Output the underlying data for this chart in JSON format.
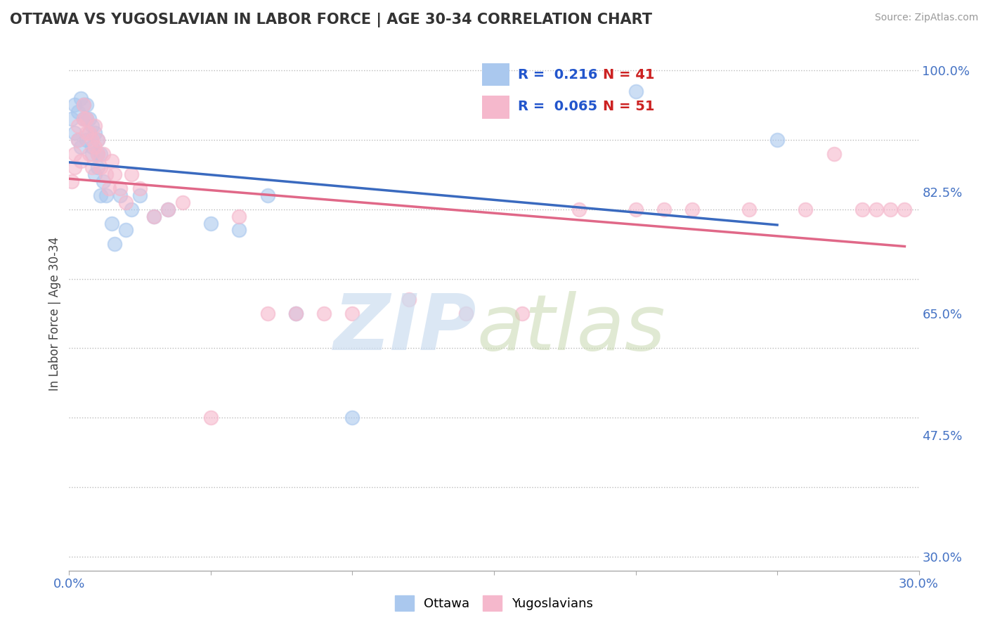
{
  "title": "OTTAWA VS YUGOSLAVIAN IN LABOR FORCE | AGE 30-34 CORRELATION CHART",
  "source": "Source: ZipAtlas.com",
  "ylabel": "In Labor Force | Age 30-34",
  "xlim": [
    0.0,
    0.3
  ],
  "ylim": [
    0.28,
    1.02
  ],
  "xticks": [
    0.0,
    0.05,
    0.1,
    0.15,
    0.2,
    0.25,
    0.3
  ],
  "xtick_labels": [
    "0.0%",
    "",
    "",
    "",
    "",
    "",
    "30.0%"
  ],
  "ytick_labels": [
    "30.0%",
    "47.5%",
    "65.0%",
    "82.5%",
    "100.0%"
  ],
  "yticks": [
    0.3,
    0.475,
    0.65,
    0.825,
    1.0
  ],
  "R_ottawa": 0.216,
  "N_ottawa": 41,
  "R_yugo": 0.065,
  "N_yugo": 51,
  "ottawa_color": "#aac8ee",
  "yugo_color": "#f5b8cc",
  "ottawa_line_color": "#3a6abf",
  "yugo_line_color": "#e06888",
  "ottawa_x": [
    0.001,
    0.002,
    0.002,
    0.003,
    0.003,
    0.004,
    0.004,
    0.005,
    0.005,
    0.006,
    0.006,
    0.006,
    0.007,
    0.007,
    0.008,
    0.008,
    0.008,
    0.009,
    0.009,
    0.01,
    0.01,
    0.01,
    0.011,
    0.011,
    0.012,
    0.013,
    0.015,
    0.016,
    0.018,
    0.02,
    0.022,
    0.025,
    0.03,
    0.035,
    0.05,
    0.06,
    0.07,
    0.08,
    0.1,
    0.2,
    0.25
  ],
  "ottawa_y": [
    0.93,
    0.91,
    0.95,
    0.94,
    0.9,
    0.96,
    0.89,
    0.93,
    0.95,
    0.95,
    0.9,
    0.93,
    0.91,
    0.93,
    0.89,
    0.92,
    0.88,
    0.85,
    0.91,
    0.88,
    0.86,
    0.9,
    0.82,
    0.88,
    0.84,
    0.82,
    0.78,
    0.75,
    0.82,
    0.77,
    0.8,
    0.82,
    0.79,
    0.8,
    0.78,
    0.77,
    0.82,
    0.65,
    0.5,
    0.97,
    0.9
  ],
  "yugo_x": [
    0.001,
    0.002,
    0.002,
    0.003,
    0.003,
    0.004,
    0.005,
    0.005,
    0.006,
    0.006,
    0.007,
    0.007,
    0.008,
    0.008,
    0.009,
    0.009,
    0.01,
    0.01,
    0.011,
    0.012,
    0.013,
    0.014,
    0.015,
    0.016,
    0.018,
    0.02,
    0.022,
    0.025,
    0.03,
    0.035,
    0.04,
    0.05,
    0.06,
    0.07,
    0.08,
    0.09,
    0.1,
    0.12,
    0.14,
    0.16,
    0.18,
    0.2,
    0.21,
    0.22,
    0.24,
    0.26,
    0.27,
    0.28,
    0.285,
    0.29,
    0.295
  ],
  "yugo_y": [
    0.84,
    0.88,
    0.86,
    0.9,
    0.92,
    0.87,
    0.93,
    0.95,
    0.91,
    0.93,
    0.88,
    0.91,
    0.86,
    0.9,
    0.89,
    0.92,
    0.88,
    0.9,
    0.86,
    0.88,
    0.85,
    0.83,
    0.87,
    0.85,
    0.83,
    0.81,
    0.85,
    0.83,
    0.79,
    0.8,
    0.81,
    0.5,
    0.79,
    0.65,
    0.65,
    0.65,
    0.65,
    0.67,
    0.65,
    0.65,
    0.8,
    0.8,
    0.8,
    0.8,
    0.8,
    0.8,
    0.88,
    0.8,
    0.8,
    0.8,
    0.8
  ]
}
